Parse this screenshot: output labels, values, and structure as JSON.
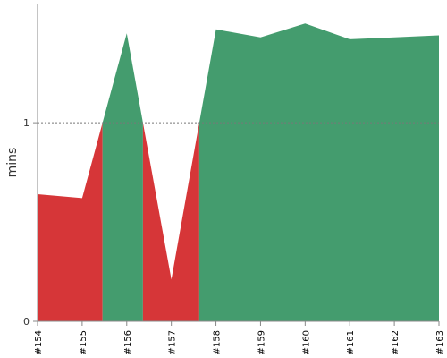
{
  "chart_data": {
    "type": "area",
    "ylabel": "mins",
    "categories": [
      "#154",
      "#155",
      "#156",
      "#157",
      "#158",
      "#159",
      "#160",
      "#161",
      "#162",
      "#163"
    ],
    "values": [
      0.64,
      0.62,
      1.45,
      0.21,
      1.47,
      1.43,
      1.5,
      1.42,
      1.43,
      1.44
    ],
    "y_ticks": [
      0,
      1
    ],
    "ylim": [
      0,
      1.6
    ],
    "threshold": 1,
    "threshold_style": "dashed",
    "grid": false,
    "colors": {
      "above": "#449c6e",
      "below": "#d63638",
      "threshold_line": "#777777",
      "axis": "#888888"
    }
  }
}
